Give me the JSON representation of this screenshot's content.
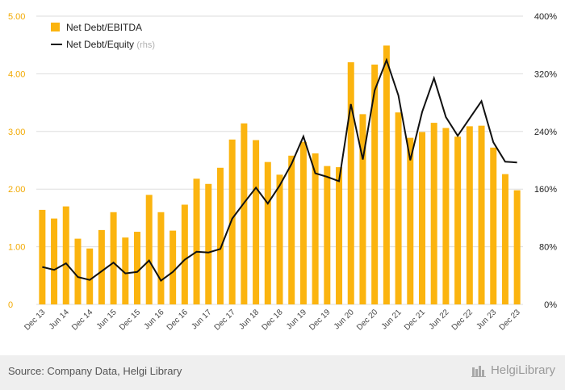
{
  "colors": {
    "bar": "#fbb40f",
    "line": "#111111",
    "left_axis_text": "#f2a900",
    "right_axis_text": "#222222",
    "grid": "#dddddd",
    "footer_bg": "#efefef"
  },
  "footer": {
    "source": "Source: Company Data, Helgi Library",
    "brand": "HelgiLibrary",
    "brand_icon": "library-icon"
  },
  "chart_data": {
    "type": "bar",
    "categories": [
      "Dec 13",
      "Mar 14",
      "Jun 14",
      "Sep 14",
      "Dec 14",
      "Mar 15",
      "Jun 15",
      "Sep 15",
      "Dec 15",
      "Mar 16",
      "Jun 16",
      "Sep 16",
      "Dec 16",
      "Mar 17",
      "Jun 17",
      "Sep 17",
      "Dec 17",
      "Mar 18",
      "Jun 18",
      "Sep 18",
      "Dec 18",
      "Mar 19",
      "Jun 19",
      "Sep 19",
      "Dec 19",
      "Mar 20",
      "Jun 20",
      "Sep 20",
      "Dec 20",
      "Mar 21",
      "Jun 21",
      "Sep 21",
      "Dec 21",
      "Mar 22",
      "Jun 22",
      "Sep 22",
      "Dec 22",
      "Mar 23",
      "Jun 23",
      "Sep 23",
      "Dec 23"
    ],
    "x_tick_labels": [
      "Dec 13",
      "Jun 14",
      "Dec 14",
      "Jun 15",
      "Dec 15",
      "Jun 16",
      "Dec 16",
      "Jun 17",
      "Dec 17",
      "Jun 18",
      "Dec 18",
      "Jun 19",
      "Dec 19",
      "Jun 20",
      "Dec 20",
      "Jun 21",
      "Dec 21",
      "Jun 22",
      "Dec 22",
      "Jun 23",
      "Dec 23"
    ],
    "series": [
      {
        "name": "Net Debt/EBITDA",
        "type": "bar",
        "axis": "left",
        "values": [
          1.64,
          1.49,
          1.7,
          1.14,
          0.97,
          1.29,
          1.6,
          1.16,
          1.26,
          1.9,
          1.6,
          1.28,
          1.73,
          2.18,
          2.09,
          2.37,
          2.86,
          3.14,
          2.85,
          2.47,
          2.25,
          2.58,
          2.82,
          2.62,
          2.4,
          2.38,
          4.2,
          3.3,
          4.16,
          4.49,
          3.33,
          2.89,
          2.99,
          3.15,
          3.06,
          2.91,
          3.09,
          3.1,
          2.72,
          2.26,
          1.98
        ]
      },
      {
        "name": "Net Debt/Equity",
        "name_suffix": "(rhs)",
        "type": "line",
        "axis": "right",
        "values": [
          52,
          48,
          57,
          38,
          34,
          46,
          58,
          43,
          45,
          61,
          33,
          45,
          62,
          73,
          72,
          77,
          119,
          141,
          162,
          140,
          165,
          195,
          233,
          182,
          177,
          171,
          278,
          201,
          297,
          339,
          290,
          200,
          267,
          314,
          260,
          234,
          258,
          282,
          225,
          198,
          197
        ]
      }
    ],
    "y_left": {
      "min": 0,
      "max": 5,
      "ticks": [
        "0",
        "1.00",
        "2.00",
        "3.00",
        "4.00",
        "5.00"
      ]
    },
    "y_right": {
      "min": 0,
      "max": 400,
      "ticks": [
        "0%",
        "80%",
        "160%",
        "240%",
        "320%",
        "400%"
      ]
    },
    "grid": true,
    "legend": "top-left"
  }
}
